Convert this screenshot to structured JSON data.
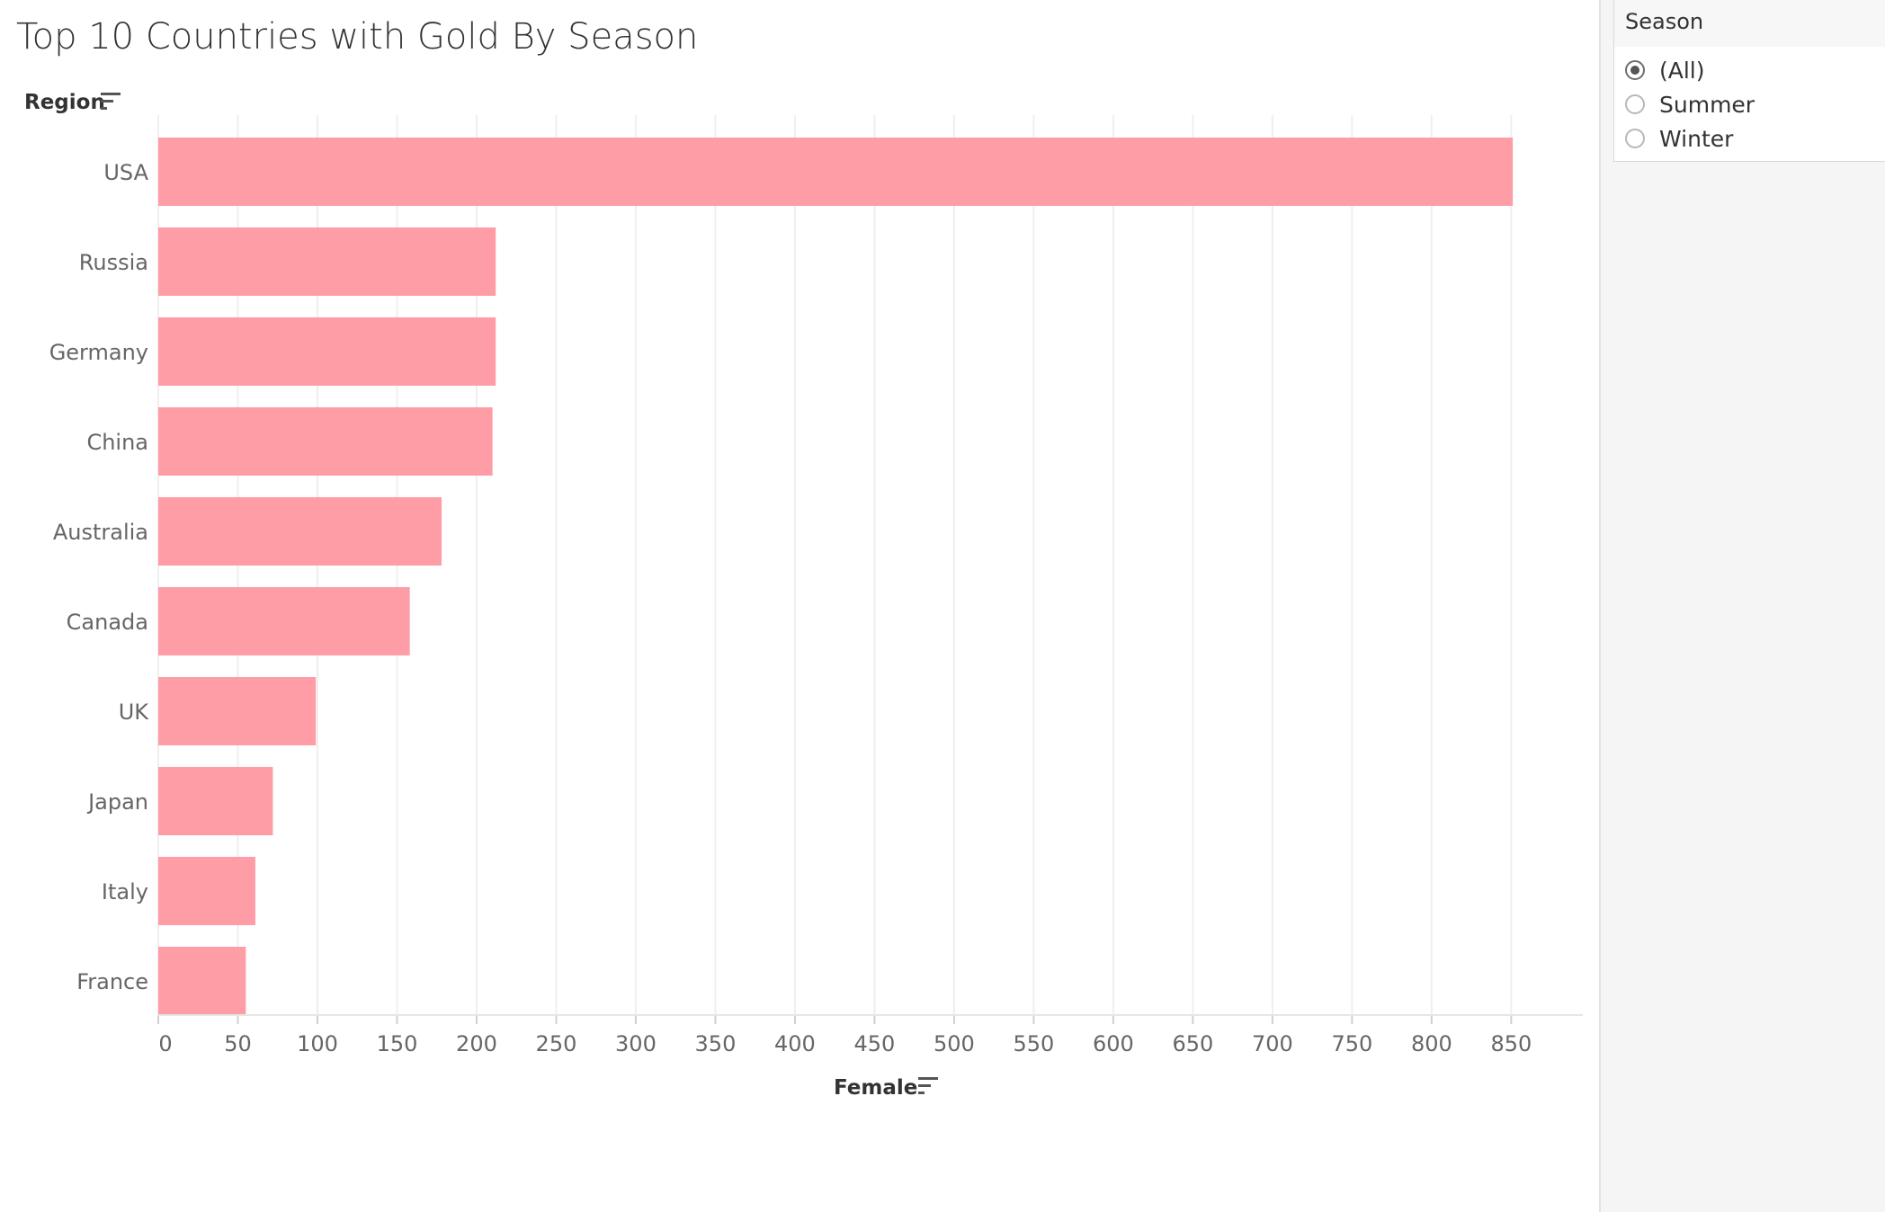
{
  "title": "Top 10 Countries with Gold By Season",
  "chart_data": {
    "type": "bar",
    "orientation": "horizontal",
    "title": "Top 10 Countries with Gold By Season",
    "ylabel": "Region",
    "xlabel": "Female",
    "categories": [
      "USA",
      "Russia",
      "Germany",
      "China",
      "Australia",
      "Canada",
      "UK",
      "Japan",
      "Italy",
      "France"
    ],
    "values": [
      851,
      212,
      212,
      210,
      178,
      158,
      99,
      72,
      61,
      55
    ],
    "xlim": [
      0,
      895
    ],
    "xticks": [
      0,
      50,
      100,
      150,
      200,
      250,
      300,
      350,
      400,
      450,
      500,
      550,
      600,
      650,
      700,
      750,
      800,
      850
    ],
    "grid": "vertical",
    "bar_color": "#ff9da7",
    "sort_icon": "sort-descending-icon"
  },
  "filter": {
    "title": "Season",
    "options": [
      {
        "label": "(All)",
        "checked": true
      },
      {
        "label": "Summer",
        "checked": false
      },
      {
        "label": "Winter",
        "checked": false
      }
    ]
  }
}
